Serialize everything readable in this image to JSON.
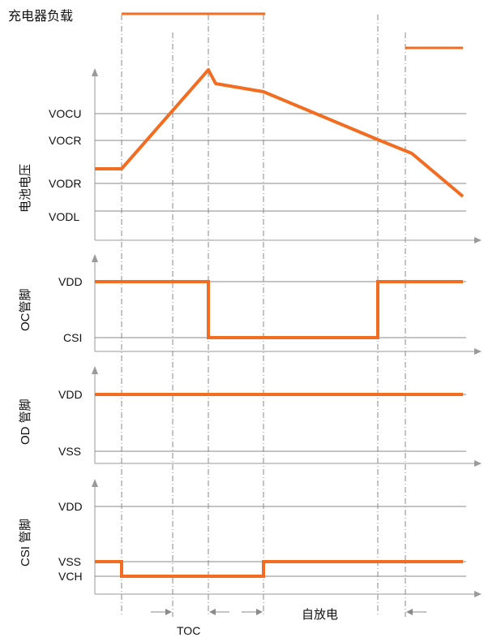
{
  "colors": {
    "signal": "#f26d21",
    "grid": "#8a8a8a",
    "axis": "#9a9a9a",
    "text": "#111111"
  },
  "header": {
    "charger_load_label": "充电器负载"
  },
  "battery_panel": {
    "ylabel": "电池电压",
    "levels": {
      "vocu": "VOCU",
      "vocr": "VOCR",
      "vodr": "VODR",
      "vodl": "VODL"
    }
  },
  "oc_panel": {
    "ylabel": "OC管脚",
    "levels": {
      "vdd": "VDD",
      "csi": "CSI"
    }
  },
  "od_panel": {
    "ylabel": "OD 管脚",
    "levels": {
      "vdd": "VDD",
      "vss": "VSS"
    }
  },
  "csi_panel": {
    "ylabel": "CSI 管脚",
    "levels": {
      "vdd": "VDD",
      "vss": "VSS",
      "vch": "VCH"
    }
  },
  "timing": {
    "toc_label": "TOC",
    "self_discharge_label": "自放电"
  }
}
